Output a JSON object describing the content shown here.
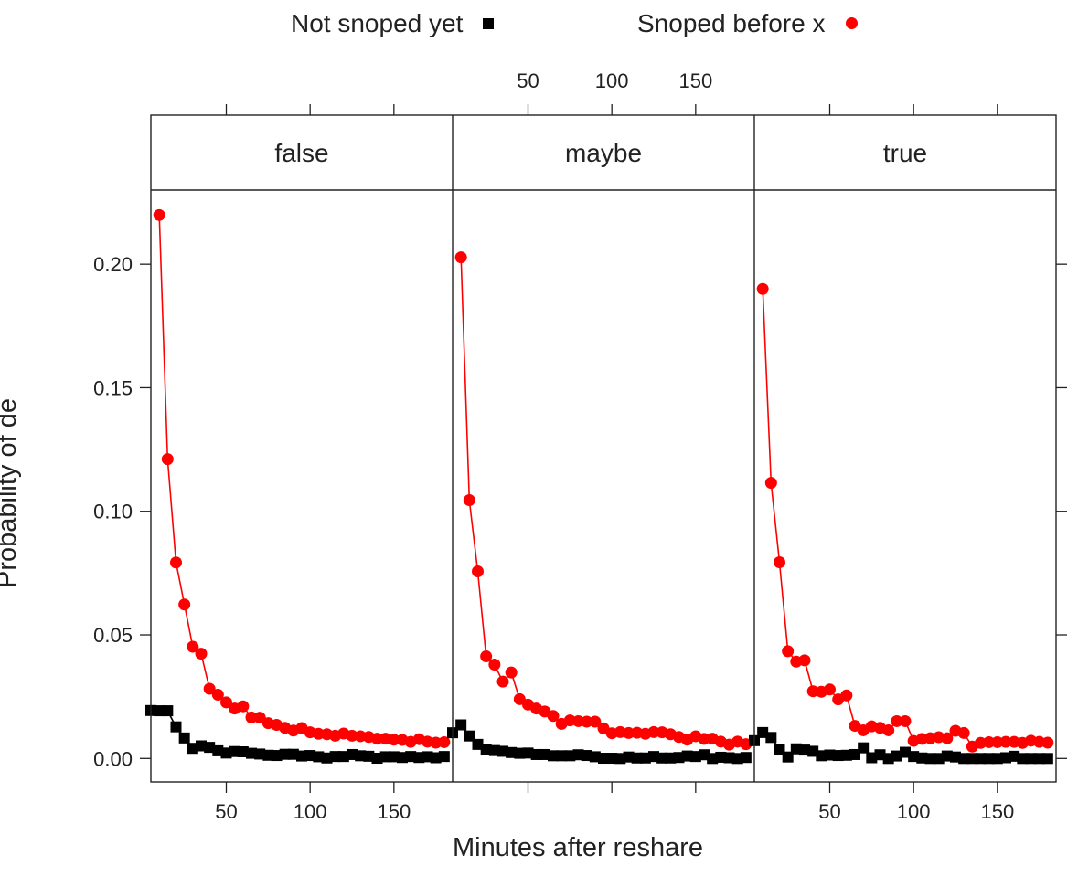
{
  "chart_data": {
    "type": "line",
    "xlabel": "Minutes after reshare",
    "ylabel": "Probability of de",
    "xlim": [
      5,
      185
    ],
    "ylim": [
      -0.0095,
      0.23
    ],
    "x_ticks": [
      50,
      100,
      150
    ],
    "y_ticks": [
      0.0,
      0.05,
      0.1,
      0.15,
      0.2
    ],
    "y_tick_labels": [
      "0.00",
      "0.05",
      "0.10",
      "0.15",
      "0.20"
    ],
    "legend_position": "top",
    "legend": [
      {
        "name": "Not snoped yet",
        "marker": "square",
        "color": "#000000"
      },
      {
        "name": "Snoped before x",
        "marker": "circle",
        "color": "#ff0000"
      }
    ],
    "panels": [
      {
        "title": "false",
        "series": [
          {
            "name": "Not snoped yet",
            "color": "#000000",
            "marker": "square",
            "x": [
              5,
              10,
              15,
              20,
              25,
              30,
              35,
              40,
              45,
              50,
              55,
              60,
              65,
              70,
              75,
              80,
              85,
              90,
              95,
              100,
              105,
              110,
              115,
              120,
              125,
              130,
              135,
              140,
              145,
              150,
              155,
              160,
              165,
              170,
              175,
              180
            ],
            "y": [
              0.0194,
              0.0193,
              0.0193,
              0.0128,
              0.0083,
              0.0041,
              0.0051,
              0.0045,
              0.0031,
              0.0022,
              0.0028,
              0.0027,
              0.0021,
              0.0018,
              0.0013,
              0.0012,
              0.0017,
              0.0017,
              0.001,
              0.0012,
              0.0007,
              0.0002,
              0.0008,
              0.0008,
              0.0016,
              0.0011,
              0.0009,
              0.0001,
              0.0007,
              0.0007,
              0.0004,
              0.0008,
              0.0004,
              0.0007,
              0.0003,
              0.0008
            ]
          },
          {
            "name": "Snoped before x",
            "color": "#ff0000",
            "marker": "circle",
            "x": [
              10,
              15,
              20,
              25,
              30,
              35,
              40,
              45,
              50,
              55,
              60,
              65,
              70,
              75,
              80,
              85,
              90,
              95,
              100,
              105,
              110,
              115,
              120,
              125,
              130,
              135,
              140,
              145,
              150,
              155,
              160,
              165,
              170,
              175,
              180
            ],
            "y": [
              0.2199,
              0.1211,
              0.0793,
              0.0623,
              0.0452,
              0.0424,
              0.0282,
              0.0258,
              0.0227,
              0.0202,
              0.0211,
              0.0166,
              0.0165,
              0.0143,
              0.0136,
              0.0124,
              0.0113,
              0.0123,
              0.0106,
              0.01,
              0.0098,
              0.0092,
              0.0101,
              0.0092,
              0.009,
              0.0087,
              0.008,
              0.008,
              0.0076,
              0.0075,
              0.0067,
              0.0078,
              0.0068,
              0.0064,
              0.0066
            ]
          }
        ]
      },
      {
        "title": "maybe",
        "series": [
          {
            "name": "Not snoped yet",
            "color": "#000000",
            "marker": "square",
            "x": [
              5,
              10,
              15,
              20,
              25,
              30,
              35,
              40,
              45,
              50,
              55,
              60,
              65,
              70,
              75,
              80,
              85,
              90,
              95,
              100,
              105,
              110,
              115,
              120,
              125,
              130,
              135,
              140,
              145,
              150,
              155,
              160,
              165,
              170,
              175,
              180
            ],
            "y": [
              0.0104,
              0.0136,
              0.0091,
              0.0057,
              0.0037,
              0.0032,
              0.0029,
              0.0024,
              0.0021,
              0.0022,
              0.0016,
              0.0016,
              0.0011,
              0.0011,
              0.0011,
              0.0015,
              0.0012,
              0.0007,
              0.0001,
              0.0001,
              0.0,
              0.0006,
              0.0002,
              0.0002,
              0.0008,
              0.0002,
              0.0002,
              0.0004,
              0.001,
              0.0008,
              0.0015,
              0.0,
              0.0005,
              0.0003,
              0.0,
              0.0004
            ]
          },
          {
            "name": "Snoped before x",
            "color": "#ff0000",
            "marker": "circle",
            "x": [
              10,
              15,
              20,
              25,
              30,
              35,
              40,
              45,
              50,
              55,
              60,
              65,
              70,
              75,
              80,
              85,
              90,
              95,
              100,
              105,
              110,
              115,
              120,
              125,
              130,
              135,
              140,
              145,
              150,
              155,
              160,
              165,
              170,
              175,
              180
            ],
            "y": [
              0.2028,
              0.1045,
              0.0757,
              0.0413,
              0.038,
              0.0311,
              0.0348,
              0.024,
              0.0218,
              0.0202,
              0.019,
              0.0172,
              0.014,
              0.0154,
              0.0151,
              0.0149,
              0.0149,
              0.0122,
              0.0102,
              0.0107,
              0.0103,
              0.0104,
              0.01,
              0.0107,
              0.0106,
              0.0098,
              0.0087,
              0.0076,
              0.009,
              0.0079,
              0.008,
              0.0068,
              0.0056,
              0.0068,
              0.0058
            ]
          }
        ]
      },
      {
        "title": "true",
        "series": [
          {
            "name": "Not snoped yet",
            "color": "#000000",
            "marker": "square",
            "x": [
              5,
              10,
              15,
              20,
              25,
              30,
              35,
              40,
              45,
              50,
              55,
              60,
              65,
              70,
              75,
              80,
              85,
              90,
              95,
              100,
              105,
              110,
              115,
              120,
              125,
              130,
              135,
              140,
              145,
              150,
              155,
              160,
              165,
              170,
              175,
              180
            ],
            "y": [
              0.0072,
              0.0105,
              0.0085,
              0.0038,
              0.0006,
              0.0039,
              0.0034,
              0.0029,
              0.0011,
              0.0014,
              0.0012,
              0.0013,
              0.0016,
              0.0043,
              0.0003,
              0.0015,
              0.0,
              0.001,
              0.0025,
              0.0008,
              0.0002,
              0.0,
              0.0,
              0.001,
              0.0006,
              0.0,
              0.0,
              0.0,
              0.0,
              0.0,
              0.0003,
              0.0009,
              0.0,
              0.0,
              0.0,
              0.0
            ]
          },
          {
            "name": "Snoped before x",
            "color": "#ff0000",
            "marker": "circle",
            "x": [
              10,
              15,
              20,
              25,
              30,
              35,
              40,
              45,
              50,
              55,
              60,
              65,
              70,
              75,
              80,
              85,
              90,
              95,
              100,
              105,
              110,
              115,
              120,
              125,
              130,
              135,
              140,
              145,
              150,
              155,
              160,
              165,
              170,
              175,
              180
            ],
            "y": [
              0.19,
              0.1115,
              0.0794,
              0.0434,
              0.0392,
              0.0397,
              0.0272,
              0.027,
              0.0279,
              0.0239,
              0.0255,
              0.0132,
              0.0114,
              0.013,
              0.0124,
              0.0114,
              0.0151,
              0.0151,
              0.0071,
              0.0079,
              0.0082,
              0.0086,
              0.0082,
              0.0112,
              0.0103,
              0.0048,
              0.0063,
              0.0066,
              0.0066,
              0.0067,
              0.0067,
              0.0063,
              0.0072,
              0.0067,
              0.0064
            ]
          }
        ]
      }
    ]
  }
}
